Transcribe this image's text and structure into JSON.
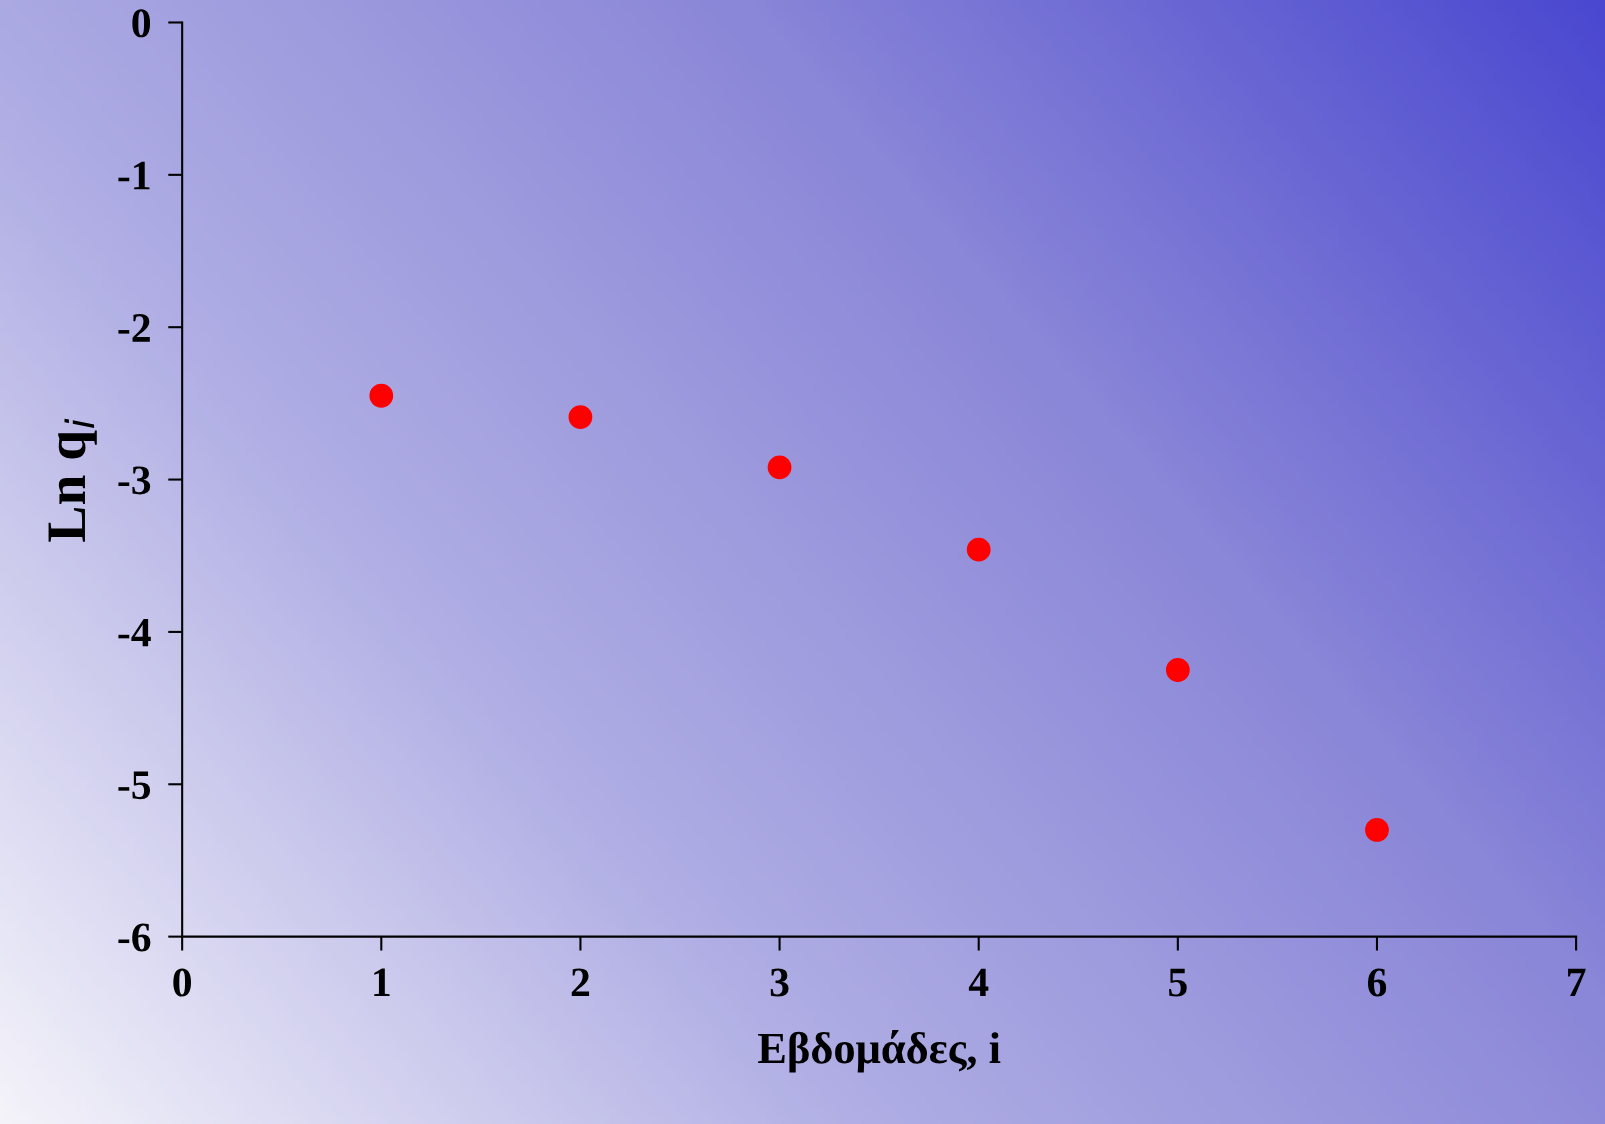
{
  "chart_data": {
    "type": "scatter",
    "xlabel": "Εβδομάδες, i",
    "ylabel": "Ln q$_{i}$",
    "x": [
      1,
      2,
      3,
      4,
      5,
      6
    ],
    "series": [
      {
        "color": "#ff0000",
        "values": [
          -2.45,
          -2.59,
          -2.92,
          -3.46,
          -4.25,
          -5.3
        ]
      }
    ],
    "xlim": [
      0,
      7
    ],
    "xticks": [
      0,
      1,
      2,
      3,
      4,
      5,
      6,
      7
    ],
    "ylim": [
      -6,
      0
    ],
    "yticks": [
      -6,
      -5,
      -4,
      -3,
      -2,
      -1,
      0
    ],
    "marker": "circle",
    "grid": false,
    "legend": false
  }
}
